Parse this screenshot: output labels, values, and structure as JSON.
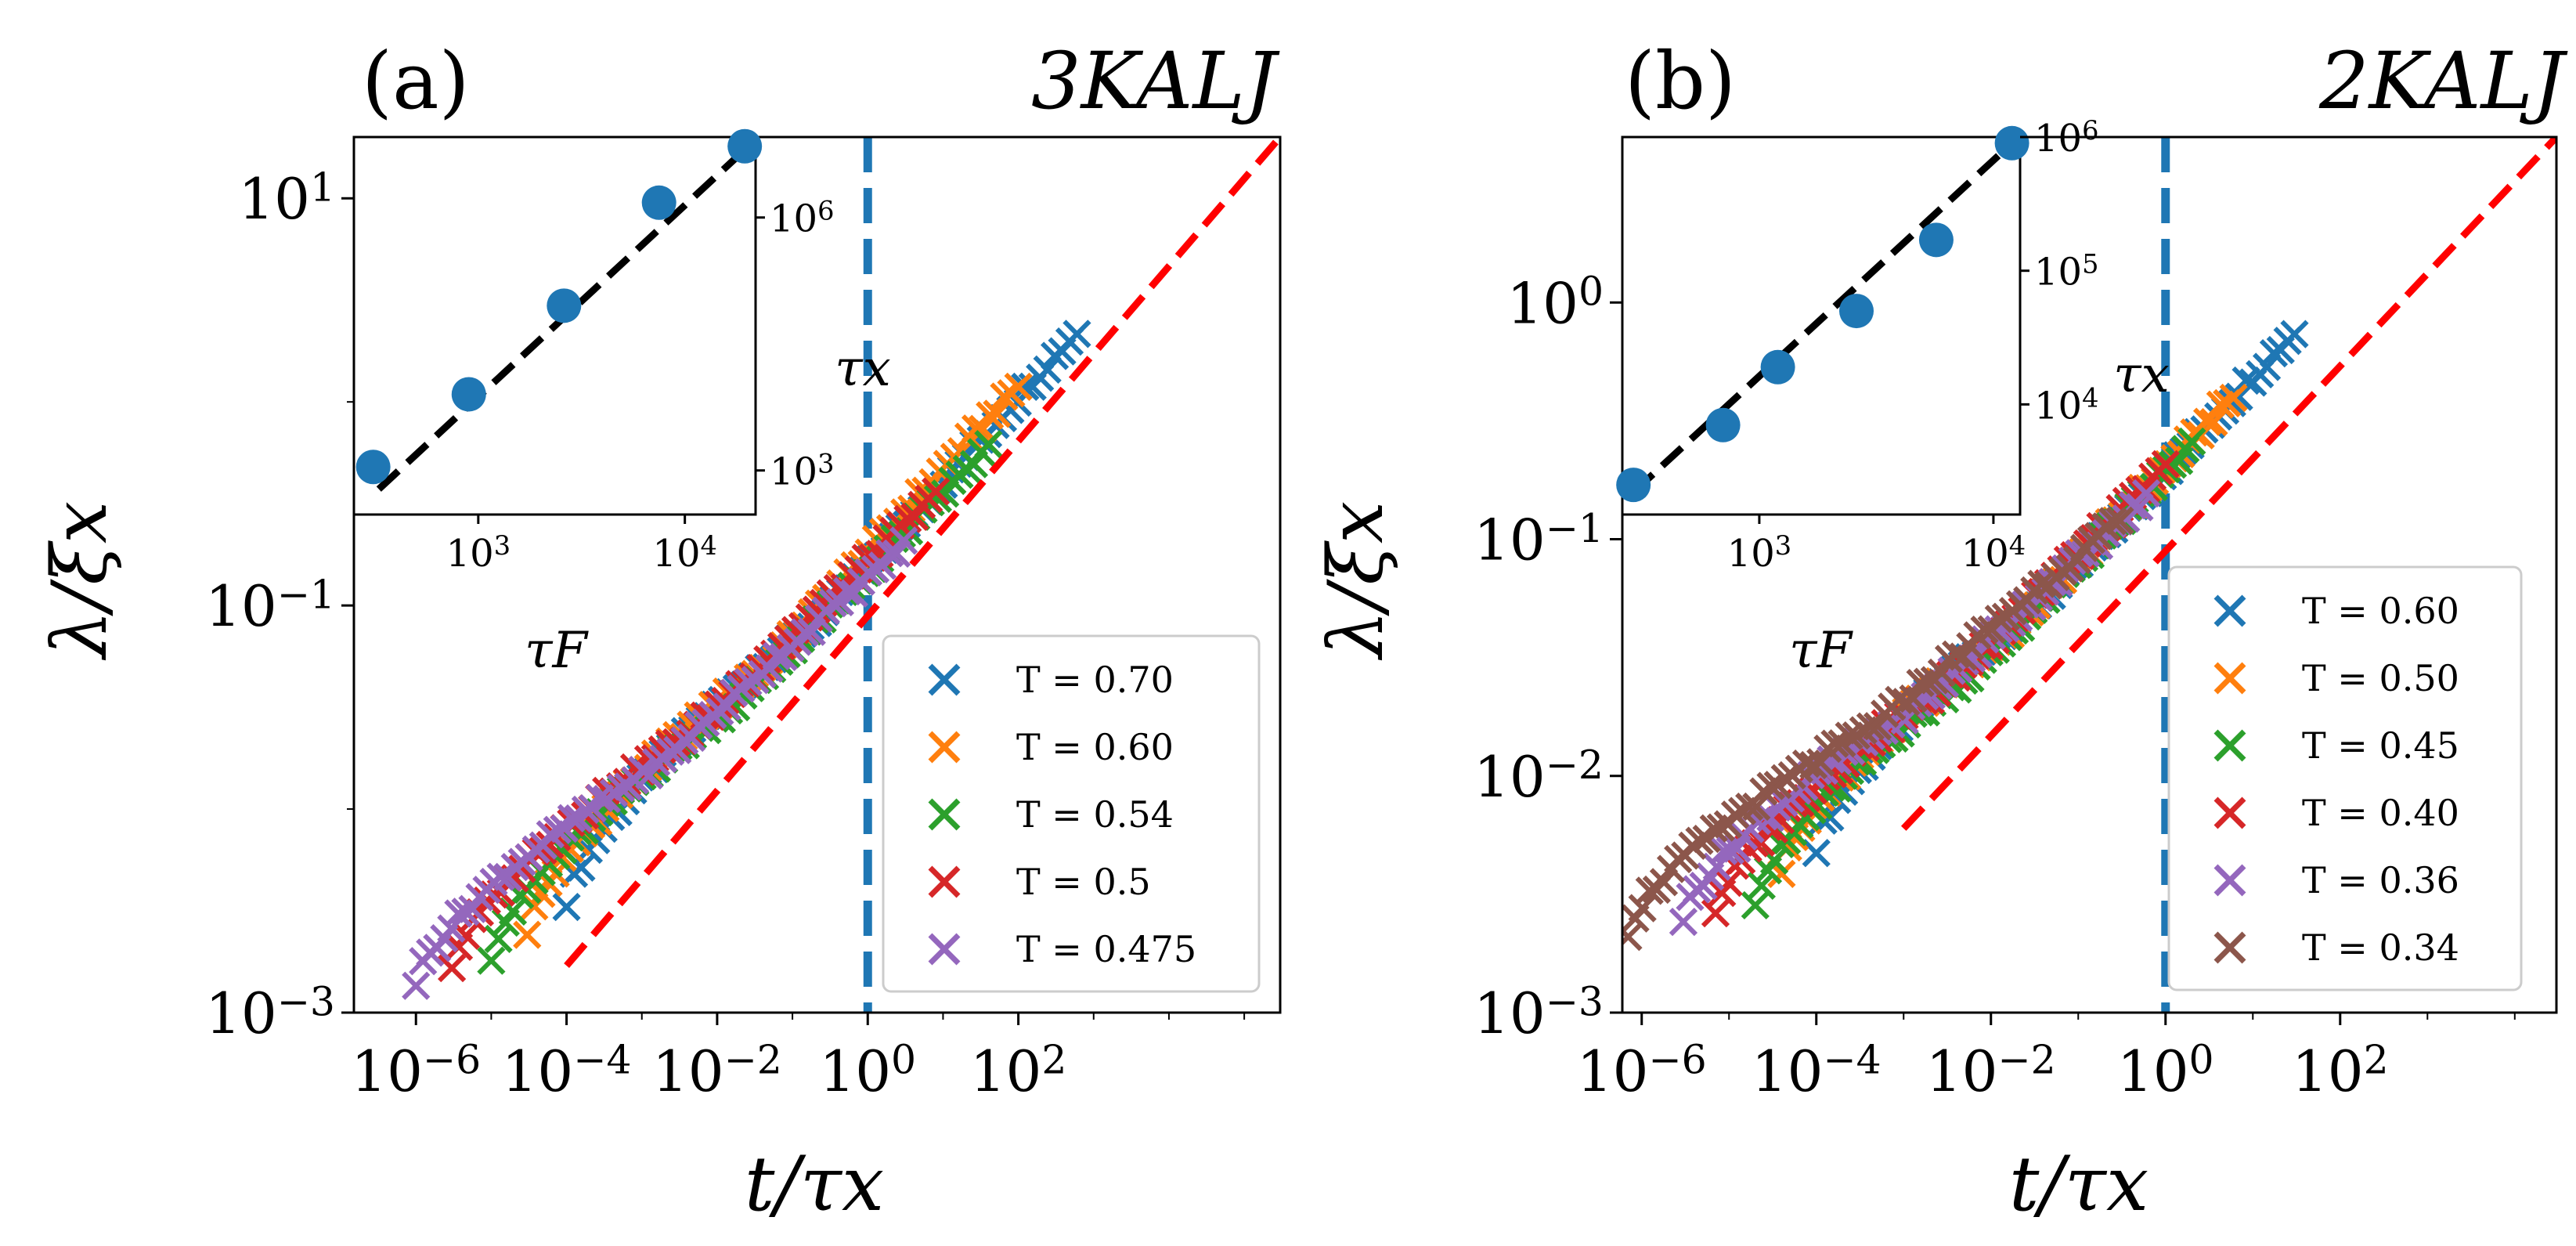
{
  "chart_data": [
    {
      "type": "scatter",
      "panel_label": "(a)",
      "title": "3KALJ",
      "xlabel": "t/τx",
      "ylabel": "λ/ξx",
      "xscale": "log",
      "yscale": "log",
      "xlim": [
        1.5e-07,
        300000.0
      ],
      "ylim": [
        0.001,
        20
      ],
      "x_ticks": [
        {
          "value": 1e-06,
          "base": "10",
          "exp": "−6"
        },
        {
          "value": 0.0001,
          "base": "10",
          "exp": "−4"
        },
        {
          "value": 0.01,
          "base": "10",
          "exp": "−2"
        },
        {
          "value": 1,
          "base": "10",
          "exp": "0"
        },
        {
          "value": 100,
          "base": "10",
          "exp": "2"
        }
      ],
      "y_ticks": [
        {
          "value": 0.001,
          "base": "10",
          "exp": "−3"
        },
        {
          "value": 0.1,
          "base": "10",
          "exp": "−1"
        },
        {
          "value": 10,
          "base": "10",
          "exp": "1"
        }
      ],
      "vline_x": 1,
      "fit_line": {
        "x": [
          0.0001,
          300000.0
        ],
        "y": [
          0.0017,
          20
        ]
      },
      "legend_position": "lower-right",
      "series": [
        {
          "name": "T = 0.70",
          "color": "#1f77b4",
          "x_range": [
            0.0001,
            600
          ],
          "y_start": 0.0035,
          "y_end": 2.2
        },
        {
          "name": "T = 0.60",
          "color": "#ff7f0e",
          "x_range": [
            3e-05,
            100
          ],
          "y_start": 0.0025,
          "y_end": 1.2
        },
        {
          "name": "T = 0.54",
          "color": "#2ca02c",
          "x_range": [
            1e-05,
            40
          ],
          "y_start": 0.0019,
          "y_end": 0.6
        },
        {
          "name": "T = 0.5",
          "color": "#d62728",
          "x_range": [
            3e-06,
            8
          ],
          "y_start": 0.0017,
          "y_end": 0.35
        },
        {
          "name": "T = 0.475",
          "color": "#9467bd",
          "x_range": [
            1e-06,
            3
          ],
          "y_start": 0.0014,
          "y_end": 0.2
        }
      ],
      "inset": {
        "xlabel": "τF",
        "ylabel": "τx",
        "xscale": "log",
        "yscale": "log",
        "y_axis_side": "right",
        "xlim": [
          250,
          22000
        ],
        "ylim": [
          300,
          9000000
        ],
        "x_ticks": [
          {
            "value": 1000,
            "base": "10",
            "exp": "3"
          },
          {
            "value": 10000,
            "base": "10",
            "exp": "4"
          }
        ],
        "y_ticks": [
          {
            "value": 1000,
            "base": "10",
            "exp": "3"
          },
          {
            "value": 1000000,
            "base": "10",
            "exp": "6"
          }
        ],
        "points": [
          {
            "x": 310,
            "y": 1100
          },
          {
            "x": 900,
            "y": 8000
          },
          {
            "x": 2600,
            "y": 90000
          },
          {
            "x": 7500,
            "y": 1500000
          },
          {
            "x": 19500,
            "y": 7000000
          }
        ],
        "fit_line": {
          "x": [
            330,
            19000
          ],
          "y": [
            600,
            6000000
          ]
        }
      }
    },
    {
      "type": "scatter",
      "panel_label": "(b)",
      "title": "2KALJ",
      "xlabel": "t/τx",
      "ylabel": "λ/ξx",
      "xscale": "log",
      "yscale": "log",
      "xlim": [
        6e-07,
        30000.0
      ],
      "ylim": [
        0.001,
        5
      ],
      "x_ticks": [
        {
          "value": 1e-06,
          "base": "10",
          "exp": "−6"
        },
        {
          "value": 0.0001,
          "base": "10",
          "exp": "−4"
        },
        {
          "value": 0.01,
          "base": "10",
          "exp": "−2"
        },
        {
          "value": 1,
          "base": "10",
          "exp": "0"
        },
        {
          "value": 100,
          "base": "10",
          "exp": "2"
        }
      ],
      "y_ticks": [
        {
          "value": 0.001,
          "base": "10",
          "exp": "−3"
        },
        {
          "value": 0.01,
          "base": "10",
          "exp": "−2"
        },
        {
          "value": 0.1,
          "base": "10",
          "exp": "−1"
        },
        {
          "value": 1,
          "base": "10",
          "exp": "0"
        }
      ],
      "vline_x": 1,
      "fit_line": {
        "x": [
          0.001,
          30000.0
        ],
        "y": [
          0.006,
          5
        ]
      },
      "legend_position": "lower-right",
      "series": [
        {
          "name": "T = 0.60",
          "color": "#1f77b4",
          "x_range": [
            0.0001,
            30
          ],
          "y_start": 0.005,
          "y_end": 0.75
        },
        {
          "name": "T = 0.50",
          "color": "#ff7f0e",
          "x_range": [
            4e-05,
            6
          ],
          "y_start": 0.004,
          "y_end": 0.4
        },
        {
          "name": "T = 0.45",
          "color": "#2ca02c",
          "x_range": [
            2e-05,
            2
          ],
          "y_start": 0.003,
          "y_end": 0.25
        },
        {
          "name": "T = 0.40",
          "color": "#d62728",
          "x_range": [
            7e-06,
            1
          ],
          "y_start": 0.0027,
          "y_end": 0.2
        },
        {
          "name": "T = 0.36",
          "color": "#9467bd",
          "x_range": [
            3e-06,
            0.6
          ],
          "y_start": 0.0025,
          "y_end": 0.15
        },
        {
          "name": "T = 0.34",
          "color": "#8c564b",
          "x_range": [
            7e-07,
            0.3
          ],
          "y_start": 0.0022,
          "y_end": 0.12
        }
      ],
      "inset": {
        "xlabel": "τF",
        "ylabel": "τx",
        "xscale": "log",
        "yscale": "log",
        "y_axis_side": "right",
        "xlim": [
          260,
          13000
        ],
        "ylim": [
          1500,
          1000000
        ],
        "x_ticks": [
          {
            "value": 1000,
            "base": "10",
            "exp": "3"
          },
          {
            "value": 10000,
            "base": "10",
            "exp": "4"
          }
        ],
        "y_ticks": [
          {
            "value": 10000,
            "base": "10",
            "exp": "4"
          },
          {
            "value": 100000,
            "base": "10",
            "exp": "5"
          },
          {
            "value": 1000000,
            "base": "10",
            "exp": "6"
          }
        ],
        "points": [
          {
            "x": 290,
            "y": 2500
          },
          {
            "x": 700,
            "y": 7000
          },
          {
            "x": 1200,
            "y": 19000
          },
          {
            "x": 2600,
            "y": 50000
          },
          {
            "x": 5700,
            "y": 170000
          },
          {
            "x": 12000,
            "y": 900000
          }
        ],
        "fit_line": {
          "x": [
            290,
            12000
          ],
          "y": [
            2200,
            900000
          ]
        }
      }
    }
  ]
}
